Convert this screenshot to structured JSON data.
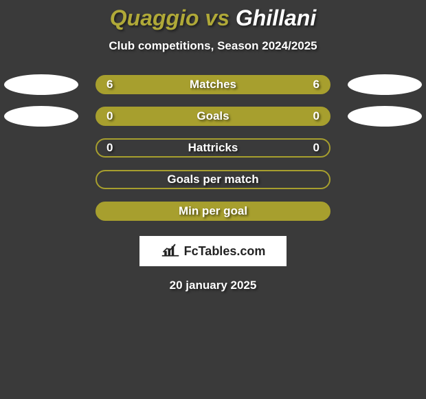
{
  "title": {
    "player1": "Quaggio",
    "vs": " vs ",
    "player2": "Ghillani",
    "color1": "#b0a938",
    "color2": "#ffffff",
    "fontsize": 32
  },
  "subtitle": "Club competitions, Season 2024/2025",
  "subtitle_fontsize": 17,
  "background_color": "#3a3a3a",
  "pill_width": 342,
  "pill_height": 28,
  "pill_border_radius": 14,
  "ellipse_width": 108,
  "ellipse_height": 30,
  "label_fontsize": 17,
  "value_fontsize": 17,
  "text_color": "#ffffff",
  "rows": [
    {
      "label": "Matches",
      "left": "6",
      "right": "6",
      "fill": "#a79f2e",
      "border": "#a79f2e",
      "left_ellipse": "#ffffff",
      "right_ellipse": "#ffffff"
    },
    {
      "label": "Goals",
      "left": "0",
      "right": "0",
      "fill": "#a79f2e",
      "border": "#a79f2e",
      "left_ellipse": "#ffffff",
      "right_ellipse": "#ffffff"
    },
    {
      "label": "Hattricks",
      "left": "0",
      "right": "0",
      "fill": "transparent",
      "border": "#a79f2e",
      "left_ellipse": null,
      "right_ellipse": null
    },
    {
      "label": "Goals per match",
      "left": "",
      "right": "",
      "fill": "transparent",
      "border": "#a79f2e",
      "left_ellipse": null,
      "right_ellipse": null
    },
    {
      "label": "Min per goal",
      "left": "",
      "right": "",
      "fill": "#a79f2e",
      "border": "#a79f2e",
      "left_ellipse": null,
      "right_ellipse": null
    }
  ],
  "logo_text": "FcTables.com",
  "logo_bg": "#ffffff",
  "logo_icon_color": "#222222",
  "date": "20 january 2025"
}
